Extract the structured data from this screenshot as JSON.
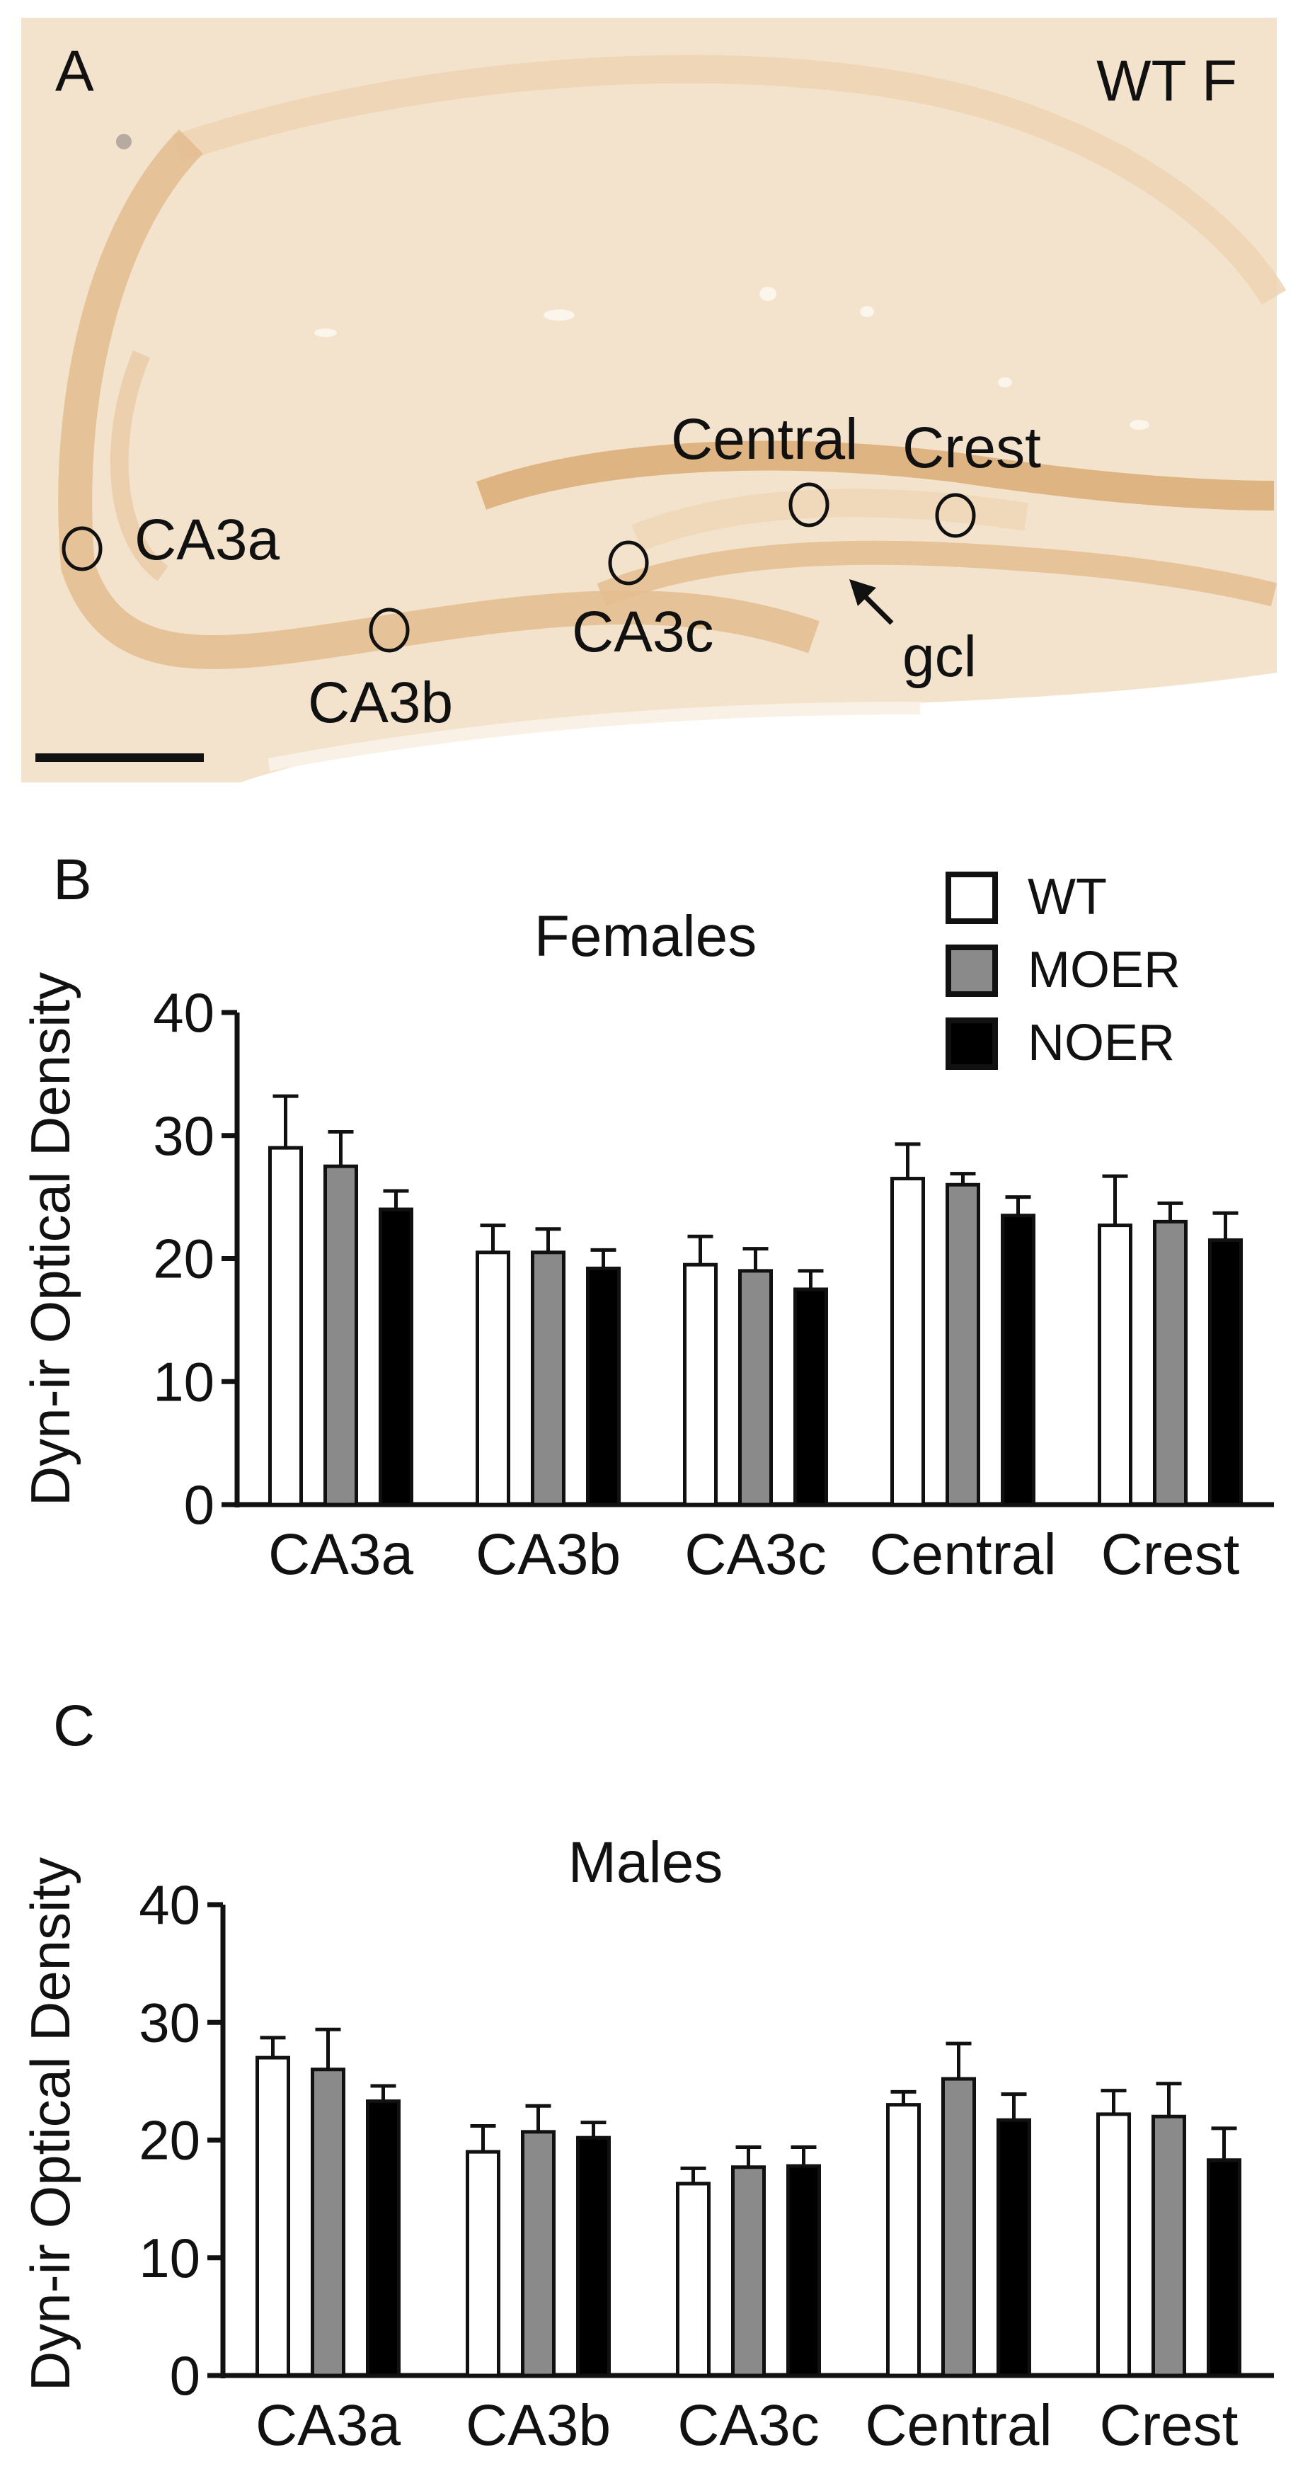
{
  "panel_a": {
    "letter": "A",
    "image_label": "WT F",
    "region_labels": {
      "ca3a": "CA3a",
      "ca3b": "CA3b",
      "ca3c": "CA3c",
      "central": "Central",
      "crest": "Crest",
      "gcl": "gcl"
    },
    "colors": {
      "tissue": "#f4e3cc",
      "stain": "#e0b684",
      "background": "#ffffff"
    }
  },
  "legend": {
    "items": [
      {
        "label": "WT",
        "color": "#ffffff"
      },
      {
        "label": "MOER",
        "color": "#8a8a8a"
      },
      {
        "label": "NOER",
        "color": "#000000"
      }
    ]
  },
  "chart_data": [
    {
      "panel": "B",
      "type": "bar",
      "title": "Females",
      "xlabel": "",
      "ylabel": "Dyn-ir Optical Density",
      "ylim": [
        0,
        40
      ],
      "yticks": [
        0,
        10,
        20,
        30,
        40
      ],
      "categories": [
        "CA3a",
        "CA3b",
        "CA3c",
        "Central",
        "Crest"
      ],
      "series": [
        {
          "name": "WT",
          "color": "#ffffff",
          "values": [
            29,
            20.5,
            19.5,
            26.5,
            22.7
          ],
          "errors": [
            4.2,
            2.2,
            2.3,
            2.8,
            4.0
          ]
        },
        {
          "name": "MOER",
          "color": "#8a8a8a",
          "values": [
            27.5,
            20.5,
            19,
            26,
            23
          ],
          "errors": [
            2.8,
            1.9,
            1.8,
            0.9,
            1.5
          ]
        },
        {
          "name": "NOER",
          "color": "#000000",
          "values": [
            24,
            19.2,
            17.5,
            23.5,
            21.5
          ],
          "errors": [
            1.5,
            1.5,
            1.5,
            1.5,
            2.2
          ]
        }
      ]
    },
    {
      "panel": "C",
      "type": "bar",
      "title": "Males",
      "xlabel": "",
      "ylabel": "Dyn-ir Optical Density",
      "ylim": [
        0,
        40
      ],
      "yticks": [
        0,
        10,
        20,
        30,
        40
      ],
      "categories": [
        "CA3a",
        "CA3b",
        "CA3c",
        "Central",
        "Crest"
      ],
      "series": [
        {
          "name": "WT",
          "color": "#ffffff",
          "values": [
            27,
            19,
            16.3,
            23,
            22.2
          ],
          "errors": [
            1.7,
            2.2,
            1.3,
            1.1,
            2.0
          ]
        },
        {
          "name": "MOER",
          "color": "#8a8a8a",
          "values": [
            26,
            20.7,
            17.7,
            25.2,
            22
          ],
          "errors": [
            3.4,
            2.2,
            1.7,
            3.0,
            2.8
          ]
        },
        {
          "name": "NOER",
          "color": "#000000",
          "values": [
            23.3,
            20.2,
            17.8,
            21.7,
            18.3
          ],
          "errors": [
            1.3,
            1.3,
            1.6,
            2.2,
            2.7
          ]
        }
      ]
    }
  ]
}
